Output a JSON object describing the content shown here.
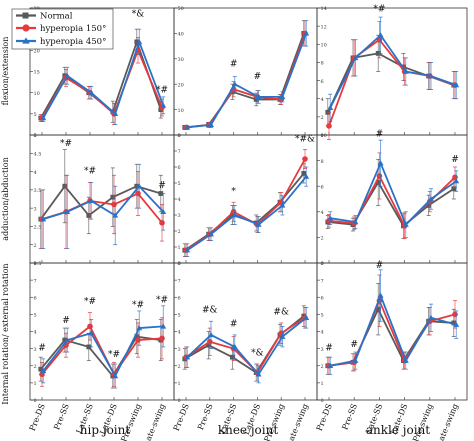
{
  "chart_data": {
    "type": "line",
    "categories": [
      "Pre-DS",
      "Pre-SS",
      "Late-SS",
      "Late-DS",
      "Pre-swing",
      "Late-swing"
    ],
    "legend": {
      "placement": "top-left",
      "series": [
        {
          "name": "Normal",
          "color": "#595959"
        },
        {
          "name": "hyperopia 150°",
          "color": "#e8393c"
        },
        {
          "name": "hyperopia 450°",
          "color": "#2a72c8"
        }
      ]
    },
    "row_labels": [
      "flexion/extension",
      "adduction/abduction",
      "Internal rotation/ external rotation"
    ],
    "column_labels": [
      "hip joint",
      "knee joint",
      "ankle joint"
    ],
    "panels": [
      {
        "id": "hip-flex",
        "row": 0,
        "col": 0,
        "ylim": [
          0,
          30
        ],
        "ticks": [
          0,
          5,
          10,
          15,
          20,
          25,
          30
        ],
        "series": [
          {
            "name": "Normal",
            "values": [
              4,
              14,
              10,
              5.5,
              22,
              6
            ],
            "errors": [
              0.8,
              2,
              1.5,
              2.5,
              3,
              2
            ]
          },
          {
            "name": "hyperopia 150°",
            "values": [
              4,
              13.5,
              10,
              5,
              20,
              6.5
            ],
            "errors": [
              0.8,
              2,
              1.5,
              2.5,
              3,
              2
            ]
          },
          {
            "name": "hyperopia 450°",
            "values": [
              4,
              14,
              10,
              5,
              22,
              7
            ],
            "errors": [
              0.8,
              2,
              1.5,
              2.5,
              3,
              2
            ]
          }
        ],
        "annotations": [
          {
            "cat": 4,
            "text": "*&",
            "yv": 28
          },
          {
            "cat": 5,
            "text": "*#",
            "yv": 10
          }
        ]
      },
      {
        "id": "knee-flex",
        "row": 0,
        "col": 1,
        "ylim": [
          0,
          50
        ],
        "ticks": [
          0,
          10,
          20,
          30,
          40,
          50
        ],
        "series": [
          {
            "name": "Normal",
            "values": [
              3,
              4,
              17,
              14,
              14,
              40
            ],
            "errors": [
              0.8,
              1,
              3,
              2.5,
              2,
              5
            ]
          },
          {
            "name": "hyperopia 150°",
            "values": [
              3,
              4,
              18,
              15,
              14,
              40
            ],
            "errors": [
              0.8,
              1,
              3,
              2.5,
              2,
              5
            ]
          },
          {
            "name": "hyperopia 450°",
            "values": [
              3,
              4,
              20,
              15,
              15,
              40
            ],
            "errors": [
              0.8,
              1,
              3,
              2.5,
              2,
              5
            ]
          }
        ],
        "annotations": [
          {
            "cat": 2,
            "text": "#",
            "yv": 27
          },
          {
            "cat": 3,
            "text": "#",
            "yv": 22
          }
        ]
      },
      {
        "id": "ankle-flex",
        "row": 0,
        "col": 2,
        "ylim": [
          0,
          14
        ],
        "ticks": [
          0,
          2,
          4,
          6,
          8,
          10,
          12,
          14
        ],
        "series": [
          {
            "name": "Normal",
            "values": [
              2.5,
              8.5,
              9,
              7.5,
              6.5,
              5.5
            ],
            "errors": [
              1.5,
              2,
              2,
              1.5,
              1.5,
              1.5
            ]
          },
          {
            "name": "hyperopia 150°",
            "values": [
              1,
              8.5,
              10.5,
              7,
              6.5,
              5.5
            ],
            "errors": [
              1.5,
              2,
              2,
              1.5,
              1.5,
              1.5
            ]
          },
          {
            "name": "hyperopia 450°",
            "values": [
              3,
              8.5,
              11,
              7,
              6.5,
              5.5
            ],
            "errors": [
              1.5,
              2,
              2,
              1.5,
              1.5,
              1.5
            ]
          }
        ],
        "annotations": [
          {
            "cat": 2,
            "text": "*#",
            "yv": 13.6
          }
        ]
      },
      {
        "id": "hip-add",
        "row": 1,
        "col": 0,
        "ylim": [
          1.5,
          5
        ],
        "ticks": [
          1.5,
          2,
          2.5,
          3,
          3.5,
          4,
          4.5,
          5
        ],
        "series": [
          {
            "name": "Normal",
            "values": [
              2.7,
              3.6,
              2.8,
              3.3,
              3.6,
              3.4
            ],
            "errors": [
              0.8,
              1,
              0.5,
              0.8,
              0.6,
              0.5
            ]
          },
          {
            "name": "hyperopia 150°",
            "values": [
              2.7,
              2.9,
              3.2,
              3.1,
              3.4,
              2.6
            ],
            "errors": [
              0.8,
              1,
              0.5,
              0.8,
              0.6,
              0.5
            ]
          },
          {
            "name": "hyperopia 450°",
            "values": [
              2.7,
              2.9,
              3.2,
              2.8,
              3.6,
              2.9
            ],
            "errors": [
              0.8,
              1,
              0.5,
              0.8,
              0.6,
              0.5
            ]
          }
        ],
        "annotations": [
          {
            "cat": 1,
            "text": "*#",
            "yv": 4.7
          },
          {
            "cat": 2,
            "text": "*#",
            "yv": 3.95
          },
          {
            "cat": 5,
            "text": "#",
            "yv": 3.55
          }
        ]
      },
      {
        "id": "knee-add",
        "row": 1,
        "col": 1,
        "ylim": [
          0,
          8
        ],
        "ticks": [
          0,
          1,
          2,
          3,
          4,
          5,
          6,
          7,
          8
        ],
        "series": [
          {
            "name": "Normal",
            "values": [
              0.8,
              1.8,
              3,
              2.5,
              3.8,
              5.6
            ],
            "errors": [
              0.4,
              0.4,
              0.6,
              0.5,
              0.6,
              0.6
            ]
          },
          {
            "name": "hyperopia 150°",
            "values": [
              0.8,
              1.8,
              3.2,
              2.4,
              3.8,
              6.5
            ],
            "errors": [
              0.4,
              0.4,
              0.6,
              0.5,
              0.6,
              0.6
            ]
          },
          {
            "name": "hyperopia 450°",
            "values": [
              0.8,
              1.8,
              3,
              2.4,
              3.6,
              5.4
            ],
            "errors": [
              0.4,
              0.4,
              0.6,
              0.5,
              0.6,
              0.6
            ]
          }
        ],
        "annotations": [
          {
            "cat": 2,
            "text": "*",
            "yv": 4.3
          },
          {
            "cat": 5,
            "text": "*#&",
            "yv": 7.6
          }
        ]
      },
      {
        "id": "ankle-add",
        "row": 1,
        "col": 2,
        "ylim": [
          0,
          10
        ],
        "ticks": [
          0,
          2,
          4,
          6,
          8,
          10
        ],
        "series": [
          {
            "name": "Normal",
            "values": [
              3.2,
              3,
              6.3,
              2.9,
              4.5,
              5.8
            ],
            "errors": [
              0.5,
              0.5,
              1.8,
              1,
              0.8,
              0.8
            ]
          },
          {
            "name": "hyperopia 150°",
            "values": [
              3.3,
              3.1,
              6.8,
              2.9,
              4.8,
              6.7
            ],
            "errors": [
              0.5,
              0.5,
              1.8,
              1,
              0.8,
              0.8
            ]
          },
          {
            "name": "hyperopia 450°",
            "values": [
              3.5,
              3.2,
              7.8,
              3,
              5,
              6.4
            ],
            "errors": [
              0.5,
              0.5,
              1.8,
              1,
              0.8,
              0.8
            ]
          }
        ],
        "annotations": [
          {
            "cat": 2,
            "text": "#",
            "yv": 9.9
          },
          {
            "cat": 5,
            "text": "#",
            "yv": 7.9
          }
        ]
      },
      {
        "id": "hip-rot",
        "row": 2,
        "col": 0,
        "ylim": [
          0,
          8
        ],
        "ticks": [
          0,
          1,
          2,
          3,
          4,
          5,
          6,
          7,
          8
        ],
        "series": [
          {
            "name": "Normal",
            "values": [
              1.8,
              3.5,
              3.1,
              1.4,
              3.7,
              3.5
            ],
            "errors": [
              0.7,
              0.7,
              0.8,
              0.7,
              1,
              1.2
            ]
          },
          {
            "name": "hyperopia 150°",
            "values": [
              1.5,
              3.2,
              4.3,
              1.5,
              3.5,
              3.6
            ],
            "errors": [
              0.7,
              0.7,
              0.8,
              0.7,
              1,
              1.2
            ]
          },
          {
            "name": "hyperopia 450°",
            "values": [
              1.7,
              3.5,
              3.9,
              1.4,
              4.2,
              4.3
            ],
            "errors": [
              0.7,
              0.7,
              0.8,
              0.7,
              1,
              1.2
            ]
          }
        ],
        "annotations": [
          {
            "cat": 0,
            "text": "#",
            "yv": 2.9
          },
          {
            "cat": 1,
            "text": "#",
            "yv": 4.5
          },
          {
            "cat": 2,
            "text": "*#",
            "yv": 5.6
          },
          {
            "cat": 3,
            "text": "*#",
            "yv": 2.5
          },
          {
            "cat": 4,
            "text": "*#",
            "yv": 5.4
          },
          {
            "cat": 5,
            "text": "*#",
            "yv": 5.7
          }
        ]
      },
      {
        "id": "knee-rot",
        "row": 2,
        "col": 1,
        "ylim": [
          0,
          8
        ],
        "ticks": [
          0,
          1,
          2,
          3,
          4,
          5,
          6,
          7,
          8
        ],
        "series": [
          {
            "name": "Normal",
            "values": [
              2.4,
              3.2,
              2.5,
              1.6,
              3.8,
              4.9
            ],
            "errors": [
              0.6,
              0.8,
              0.7,
              0.5,
              0.6,
              0.6
            ]
          },
          {
            "name": "hyperopia 150°",
            "values": [
              2.5,
              3.4,
              3,
              1.6,
              3.9,
              4.8
            ],
            "errors": [
              0.6,
              0.8,
              0.7,
              0.5,
              0.6,
              0.6
            ]
          },
          {
            "name": "hyperopia 450°",
            "values": [
              2.5,
              3.8,
              3.1,
              1.5,
              3.7,
              4.8
            ],
            "errors": [
              0.6,
              0.8,
              0.7,
              0.5,
              0.6,
              0.6
            ]
          }
        ],
        "annotations": [
          {
            "cat": 1,
            "text": "#&",
            "yv": 5.1
          },
          {
            "cat": 2,
            "text": "#",
            "yv": 4.3
          },
          {
            "cat": 3,
            "text": "*&",
            "yv": 2.6
          },
          {
            "cat": 4,
            "text": "#&",
            "yv": 5
          }
        ]
      },
      {
        "id": "ankle-rot",
        "row": 2,
        "col": 2,
        "ylim": [
          0,
          8
        ],
        "ticks": [
          0,
          1,
          2,
          3,
          4,
          5,
          6,
          7,
          8
        ],
        "series": [
          {
            "name": "Normal",
            "values": [
              2,
              2.2,
              5.3,
              2.3,
              4.6,
              4.5
            ],
            "errors": [
              0.5,
              0.5,
              1.5,
              0.5,
              0.8,
              0.8
            ]
          },
          {
            "name": "hyperopia 150°",
            "values": [
              2,
              2.2,
              5.8,
              2.3,
              4.6,
              5
            ],
            "errors": [
              0.5,
              0.5,
              1.5,
              0.5,
              0.8,
              0.8
            ]
          },
          {
            "name": "hyperopia 450°",
            "values": [
              2,
              2.3,
              6.1,
              2.3,
              4.8,
              4.4
            ],
            "errors": [
              0.5,
              0.5,
              1.5,
              0.5,
              0.8,
              0.8
            ]
          }
        ],
        "annotations": [
          {
            "cat": 0,
            "text": "#",
            "yv": 2.9
          },
          {
            "cat": 1,
            "text": "#",
            "yv": 3.1
          },
          {
            "cat": 2,
            "text": "#",
            "yv": 7.7
          }
        ]
      }
    ]
  }
}
